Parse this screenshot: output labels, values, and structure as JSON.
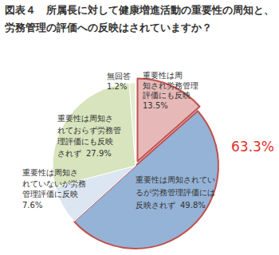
{
  "chart_data": {
    "type": "pie",
    "title": "図表４　所属長に対して健康増進活動の重要性の周知と、労務管理の評価への反映はされていますか？",
    "categories": [
      "重要性は周知され労務管理評価にも反映",
      "重要性は周知されているが労務管理評価には反映されず",
      "重要性は周知されていないが労務管理評価に反映",
      "重要性は周知されておらず労務管理評価にも反映されず",
      "無回答"
    ],
    "values": [
      13.5,
      49.8,
      7.6,
      27.9,
      1.2
    ],
    "value_labels": [
      "13.5%",
      "49.8%",
      "7.6%",
      "27.9%",
      "1.2%"
    ],
    "colors": [
      "#e6b9b8",
      "#95b3d7",
      "#dce6f2",
      "#d7e4bd",
      "#e4edd0"
    ],
    "data_labels": true,
    "annotations": [
      "63.3%"
    ]
  }
}
